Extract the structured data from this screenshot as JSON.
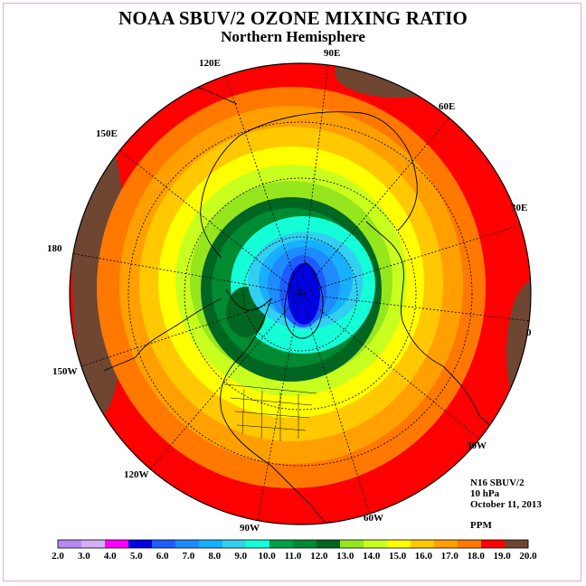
{
  "title": "NOAA SBUV/2 OZONE MIXING RATIO",
  "subtitle": "Northern Hemisphere",
  "meridian_labels": [
    {
      "text": "90E",
      "lon": 90
    },
    {
      "text": "60E",
      "lon": 60
    },
    {
      "text": "30E",
      "lon": 30
    },
    {
      "text": "0",
      "lon": 0
    },
    {
      "text": "30W",
      "lon": -30
    },
    {
      "text": "60W",
      "lon": -60
    },
    {
      "text": "90W",
      "lon": -90
    },
    {
      "text": "120W",
      "lon": -120
    },
    {
      "text": "150W",
      "lon": -150
    },
    {
      "text": "180",
      "lon": 180
    },
    {
      "text": "150E",
      "lon": 150
    },
    {
      "text": "120E",
      "lon": 120
    }
  ],
  "info": {
    "instrument": "N16 SBUV/2",
    "level": "10 hPa",
    "date": "October 11, 2013",
    "units": "PPM"
  },
  "colorbar": {
    "ticks": [
      "2.0",
      "3.0",
      "4.0",
      "5.0",
      "6.0",
      "7.0",
      "8.0",
      "9.0",
      "10.0",
      "11.0",
      "12.0",
      "13.0",
      "14.0",
      "15.0",
      "16.0",
      "17.0",
      "18.0",
      "19.0",
      "20.0"
    ],
    "colors": [
      "#b788f0",
      "#d4aef6",
      "#ff00ff",
      "#0000e6",
      "#1e5cff",
      "#1e8cff",
      "#17b0ff",
      "#32d0f0",
      "#14ffd8",
      "#00a046",
      "#008a32",
      "#006622",
      "#96e61e",
      "#c8ff1e",
      "#ffff00",
      "#ffc800",
      "#ffa000",
      "#ff7800",
      "#ff0000",
      "#6e4632"
    ]
  }
}
